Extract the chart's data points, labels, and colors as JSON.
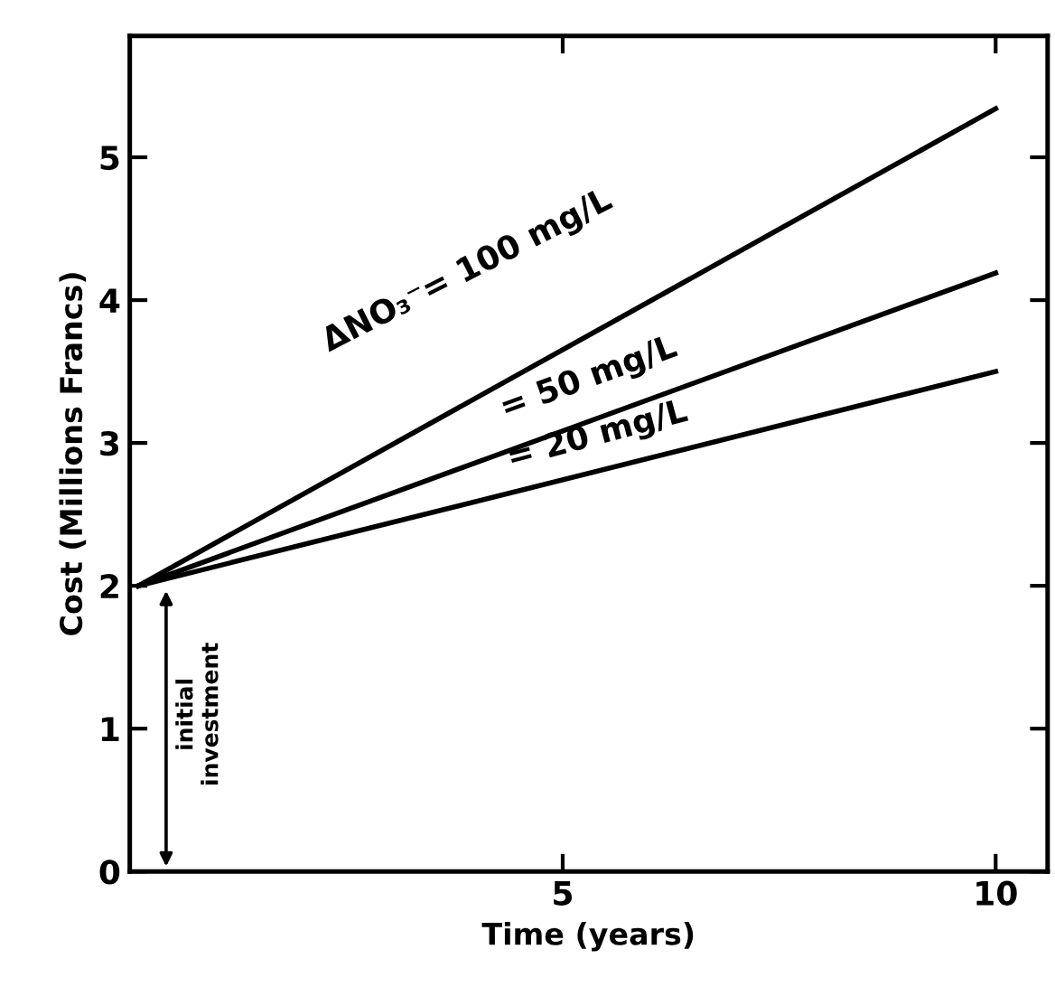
{
  "chart_data": {
    "type": "line",
    "xlabel": "Time (years)",
    "ylabel": "Cost (Millions Francs)",
    "x": [
      0.1,
      10
    ],
    "xlim": [
      0,
      10.6
    ],
    "ylim": [
      0,
      5.85
    ],
    "xticks": [
      5,
      10
    ],
    "yticks": [
      0,
      1,
      2,
      3,
      4,
      5
    ],
    "grid": false,
    "legend": false,
    "marker": "none",
    "line_style": "solid",
    "series": [
      {
        "name": "ΔNO₃⁻= 100 mg/L",
        "color": "#000000",
        "values": [
          2.0,
          5.34
        ]
      },
      {
        "name": "= 50 mg/L",
        "color": "#000000",
        "values": [
          2.0,
          4.19
        ]
      },
      {
        "name": "= 20 mg/L",
        "color": "#000000",
        "values": [
          2.0,
          3.5
        ]
      }
    ],
    "annotations": [
      "initial\ninvestment"
    ]
  }
}
